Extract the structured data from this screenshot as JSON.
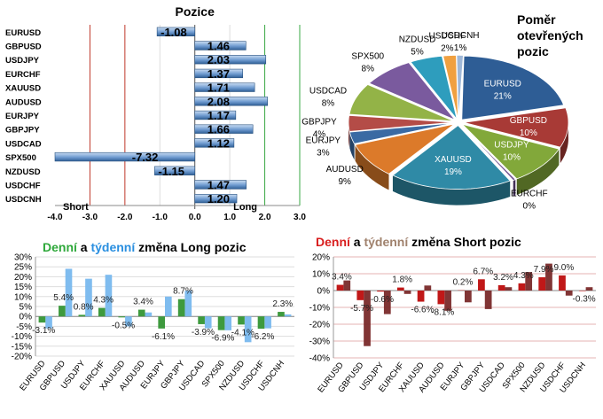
{
  "colors": {
    "bar_blue_light": "#c9dcf2",
    "bar_blue_dark": "#2f5f96",
    "line_short": "#c0392b",
    "line_long": "#3aa844",
    "daily_green": "#2ea83a",
    "weekly_blue": "#2a8fe0",
    "daily_red": "#d81e1e",
    "weekly_brown": "#a0826d",
    "daily_bar": "#3e9a3e",
    "weekly_bar": "#78b8ee",
    "short_daily_bar": "#c01818",
    "short_weekly_bar": "#7a2a2a"
  },
  "positions": {
    "title": "Pozice",
    "label_short": "Short",
    "label_long": "Long",
    "chart_data": {
      "type": "bar",
      "orientation": "horizontal",
      "categories": [
        "EURUSD",
        "GBPUSD",
        "USDJPY",
        "EURCHF",
        "XAUUSD",
        "AUDUSD",
        "EURJPY",
        "GBPJPY",
        "USDCAD",
        "SPX500",
        "NZDUSD",
        "USDCHF",
        "USDCNH"
      ],
      "values": [
        -1.08,
        1.46,
        2.03,
        1.37,
        1.71,
        2.08,
        1.17,
        1.66,
        1.12,
        -7.32,
        -1.15,
        1.47,
        1.2
      ],
      "value_labels": [
        "-1.08",
        "1.46",
        "2.03",
        "1.37",
        "1.71",
        "2.08",
        "1.17",
        "1.66",
        "1.12",
        "-7.32",
        "-1.15",
        "1.47",
        "1.20"
      ],
      "xlim": [
        -4.0,
        3.0
      ],
      "xticks": [
        "-4.0",
        "-3.0",
        "-2.0",
        "-1.0",
        "0.0",
        "1.0",
        "2.0",
        "3.0"
      ],
      "threshold_lines": [
        -3.0,
        -2.0,
        2.0,
        3.0
      ]
    }
  },
  "pie": {
    "title_line1": "Poměr",
    "title_line2": "otevřených",
    "title_line3": "pozic",
    "chart_data": {
      "type": "pie",
      "labels": [
        "EURUSD",
        "GBPUSD",
        "USDJPY",
        "EURCHF",
        "XAUUSD",
        "AUDUSD",
        "EURJPY",
        "GBPJPY",
        "USDCAD",
        "SPX500",
        "NZDUSD",
        "USDCHF",
        "USDCNH"
      ],
      "values": [
        21,
        10,
        10,
        0,
        19,
        9,
        3,
        4,
        8,
        8,
        5,
        2,
        1
      ],
      "value_labels": [
        "21%",
        "10%",
        "10%",
        "0%",
        "19%",
        "9%",
        "3%",
        "4%",
        "8%",
        "8%",
        "5%",
        "2%",
        "1%"
      ],
      "colors": [
        "#2e5d95",
        "#a83a36",
        "#82a83a",
        "#6c4d8e",
        "#2f8aa6",
        "#dc7a2a",
        "#3a6aa3",
        "#b44c47",
        "#93b347",
        "#7a5a9e",
        "#2e9dbd",
        "#f0a040",
        "#9fb8d8"
      ]
    }
  },
  "long_change": {
    "title_prefix": "Denní",
    "title_mid": " a ",
    "title_weekly": "týdenní",
    "title_rest": " změna Long pozic",
    "chart_data": {
      "type": "bar",
      "categories": [
        "EURUSD",
        "GBPUSD",
        "USDJPY",
        "EURCHF",
        "XAUUSD",
        "AUDUSD",
        "EURJPY",
        "GBPJPY",
        "USDCAD",
        "SPX500",
        "NZDUSD",
        "USDCHF",
        "USDCNH"
      ],
      "series": [
        {
          "name": "Denní",
          "values": [
            -3.1,
            5.4,
            0.8,
            4.3,
            -0.5,
            3.4,
            -6.1,
            8.7,
            -3.9,
            -6.9,
            -4.1,
            -6.2,
            2.3
          ]
        },
        {
          "name": "Týdenní",
          "values": [
            -6,
            24,
            19,
            21,
            -5,
            2,
            10,
            13,
            -6,
            -7,
            -13,
            -6,
            1
          ]
        }
      ],
      "data_labels": [
        "-3.1%",
        "5.4%",
        "0.8%",
        "4.3%",
        "-0.5%",
        "3.4%",
        "-6.1%",
        "8.7%",
        "-3.9%",
        "-6.9%",
        "-4.1%",
        "-6.2%",
        "2.3%"
      ],
      "ylim": [
        -20,
        30
      ],
      "yticks": [
        "30%",
        "25%",
        "20%",
        "15%",
        "10%",
        "5%",
        "0%",
        "-5%",
        "-10%",
        "-15%",
        "-20%"
      ]
    }
  },
  "short_change": {
    "title_prefix": "Denní",
    "title_mid": " a ",
    "title_weekly": "týdenní",
    "title_rest": " změna Short pozic",
    "chart_data": {
      "type": "bar",
      "categories": [
        "EURUSD",
        "GBPUSD",
        "USDJPY",
        "EURCHF",
        "XAUUSD",
        "AUDUSD",
        "EURJPY",
        "GBPJPY",
        "USDCAD",
        "SPX500",
        "NZDUSD",
        "USDCHF",
        "USDCNH"
      ],
      "series": [
        {
          "name": "Denní",
          "values": [
            3.4,
            -5.7,
            -0.6,
            1.8,
            -6.6,
            -8.1,
            0.2,
            6.7,
            3.2,
            4.3,
            7.9,
            9.0,
            -0.3
          ]
        },
        {
          "name": "Týdenní",
          "values": [
            6,
            -33,
            -14,
            -2,
            3,
            -12,
            -7,
            -11,
            2,
            11,
            16,
            -3,
            2
          ]
        }
      ],
      "data_labels": [
        "3.4%",
        "-5.7%",
        "-0.6%",
        "1.8%",
        "-6.6%",
        "-8.1%",
        "0.2%",
        "6.7%",
        "3.2%",
        "4.3%",
        "7.9%",
        "9.0%",
        "-0.3%"
      ],
      "ylim": [
        -40,
        20
      ],
      "yticks": [
        "20%",
        "10%",
        "0%",
        "-10%",
        "-20%",
        "-30%",
        "-40%"
      ]
    }
  }
}
